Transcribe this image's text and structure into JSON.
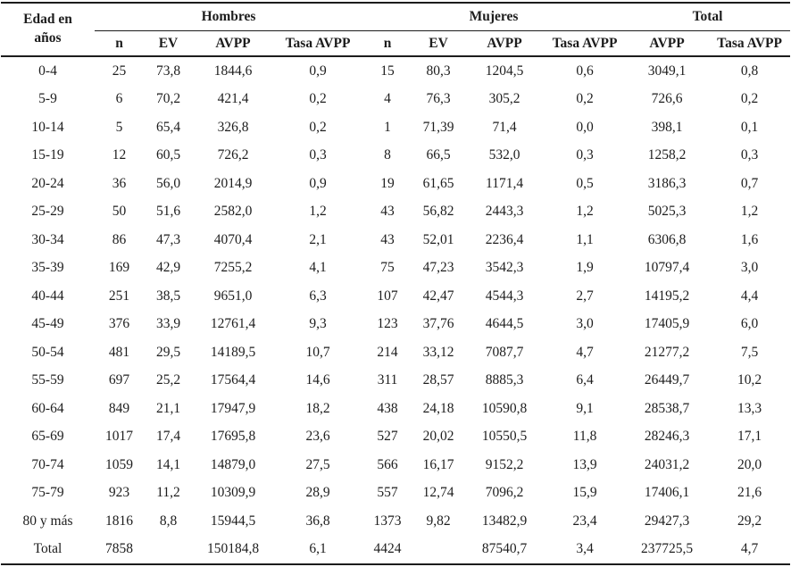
{
  "table": {
    "col1_header": "Edad en años",
    "groups": [
      {
        "label": "Hombres"
      },
      {
        "label": "Mujeres"
      },
      {
        "label": "Total"
      }
    ],
    "subheaders": [
      "n",
      "EV",
      "AVPP",
      "Tasa AVPP",
      "n",
      "EV",
      "AVPP",
      "Tasa AVPP",
      "AVPP",
      "Tasa AVPP"
    ],
    "rows": [
      [
        "0-4",
        "25",
        "73,8",
        "1844,6",
        "0,9",
        "15",
        "80,3",
        "1204,5",
        "0,6",
        "3049,1",
        "0,8"
      ],
      [
        "5-9",
        "6",
        "70,2",
        "421,4",
        "0,2",
        "4",
        "76,3",
        "305,2",
        "0,2",
        "726,6",
        "0,2"
      ],
      [
        "10-14",
        "5",
        "65,4",
        "326,8",
        "0,2",
        "1",
        "71,39",
        "71,4",
        "0,0",
        "398,1",
        "0,1"
      ],
      [
        "15-19",
        "12",
        "60,5",
        "726,2",
        "0,3",
        "8",
        "66,5",
        "532,0",
        "0,3",
        "1258,2",
        "0,3"
      ],
      [
        "20-24",
        "36",
        "56,0",
        "2014,9",
        "0,9",
        "19",
        "61,65",
        "1171,4",
        "0,5",
        "3186,3",
        "0,7"
      ],
      [
        "25-29",
        "50",
        "51,6",
        "2582,0",
        "1,2",
        "43",
        "56,82",
        "2443,3",
        "1,2",
        "5025,3",
        "1,2"
      ],
      [
        "30-34",
        "86",
        "47,3",
        "4070,4",
        "2,1",
        "43",
        "52,01",
        "2236,4",
        "1,1",
        "6306,8",
        "1,6"
      ],
      [
        "35-39",
        "169",
        "42,9",
        "7255,2",
        "4,1",
        "75",
        "47,23",
        "3542,3",
        "1,9",
        "10797,4",
        "3,0"
      ],
      [
        "40-44",
        "251",
        "38,5",
        "9651,0",
        "6,3",
        "107",
        "42,47",
        "4544,3",
        "2,7",
        "14195,2",
        "4,4"
      ],
      [
        "45-49",
        "376",
        "33,9",
        "12761,4",
        "9,3",
        "123",
        "37,76",
        "4644,5",
        "3,0",
        "17405,9",
        "6,0"
      ],
      [
        "50-54",
        "481",
        "29,5",
        "14189,5",
        "10,7",
        "214",
        "33,12",
        "7087,7",
        "4,7",
        "21277,2",
        "7,5"
      ],
      [
        "55-59",
        "697",
        "25,2",
        "17564,4",
        "14,6",
        "311",
        "28,57",
        "8885,3",
        "6,4",
        "26449,7",
        "10,2"
      ],
      [
        "60-64",
        "849",
        "21,1",
        "17947,9",
        "18,2",
        "438",
        "24,18",
        "10590,8",
        "9,1",
        "28538,7",
        "13,3"
      ],
      [
        "65-69",
        "1017",
        "17,4",
        "17695,8",
        "23,6",
        "527",
        "20,02",
        "10550,5",
        "11,8",
        "28246,3",
        "17,1"
      ],
      [
        "70-74",
        "1059",
        "14,1",
        "14879,0",
        "27,5",
        "566",
        "16,17",
        "9152,2",
        "13,9",
        "24031,2",
        "20,0"
      ],
      [
        "75-79",
        "923",
        "11,2",
        "10309,9",
        "28,9",
        "557",
        "12,74",
        "7096,2",
        "15,9",
        "17406,1",
        "21,6"
      ],
      [
        "80 y más",
        "1816",
        "8,8",
        "15944,5",
        "36,8",
        "1373",
        "9,82",
        "13482,9",
        "23,4",
        "29427,3",
        "29,2"
      ],
      [
        "Total",
        "7858",
        "",
        "150184,8",
        "6,1",
        "4424",
        "",
        "87540,7",
        "3,4",
        "237725,5",
        "4,7"
      ]
    ]
  },
  "colors": {
    "text": "#1d1d1d",
    "border": "#1c1c1c",
    "background": "#ffffff"
  }
}
